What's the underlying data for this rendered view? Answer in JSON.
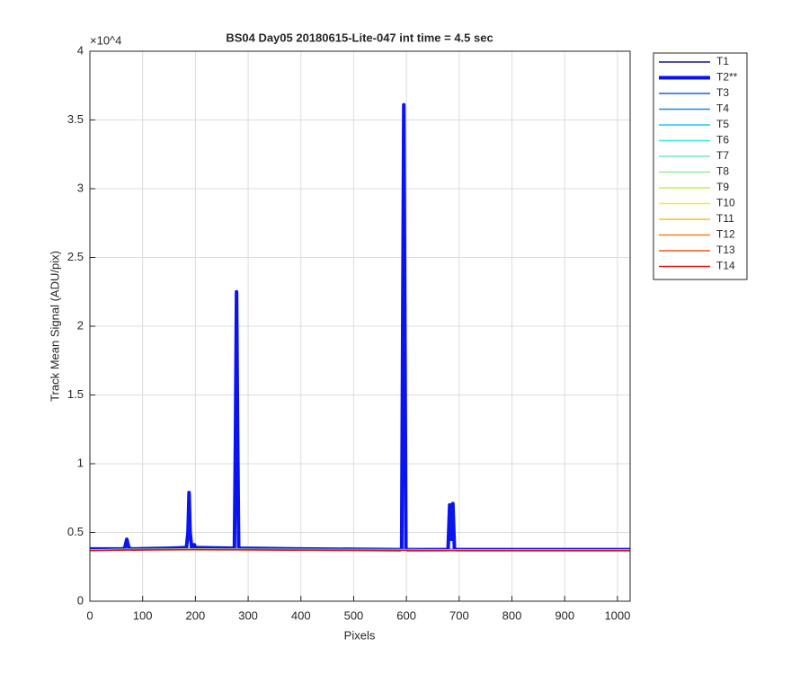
{
  "chart_data": {
    "type": "line",
    "title": "BS04 Day05 20180615-Lite-047 int time = 4.5 sec",
    "xlabel": "Pixels",
    "ylabel": "Track Mean Signal (ADU/pix)",
    "y_multiplier": "×10^4",
    "xlim": [
      0,
      1024
    ],
    "ylim": [
      0,
      40000
    ],
    "xticks": [
      0,
      100,
      200,
      300,
      400,
      500,
      600,
      700,
      800,
      900,
      1000
    ],
    "yticks": [
      0,
      {
        "value": 5000,
        "label": "0.5"
      },
      {
        "value": 10000,
        "label": "1"
      },
      {
        "value": 15000,
        "label": "1.5"
      },
      {
        "value": 20000,
        "label": "2"
      },
      {
        "value": 25000,
        "label": "2.5"
      },
      {
        "value": 30000,
        "label": "3"
      },
      {
        "value": 35000,
        "label": "3.5"
      },
      {
        "value": 40000,
        "label": "4"
      }
    ],
    "grid": true,
    "legend": "outside-right",
    "series": [
      {
        "name": "T1",
        "color": "#14148c",
        "linewidth": 1.5,
        "x": [
          0,
          70,
          190,
          280,
          400,
          595,
          700,
          1024
        ],
        "values": [
          3760,
          3800,
          3820,
          3810,
          3790,
          3780,
          3760,
          3760
        ]
      },
      {
        "name": "T2**",
        "color": "#0a14f0",
        "linewidth": 4,
        "x": [
          0,
          60,
          66,
          70,
          74,
          80,
          150,
          183,
          186,
          188,
          190,
          193,
          196,
          198,
          200,
          270,
          274,
          276,
          278,
          280,
          282,
          286,
          400,
          588,
          591,
          593,
          595,
          597,
          599,
          602,
          675,
          679,
          682,
          685,
          688,
          691,
          695,
          800,
          1024
        ],
        "values": [
          3800,
          3800,
          3850,
          4500,
          3850,
          3800,
          3850,
          3900,
          5000,
          7900,
          5000,
          3900,
          3950,
          4100,
          3900,
          3850,
          3900,
          12000,
          22500,
          12000,
          3900,
          3850,
          3800,
          3750,
          3850,
          20000,
          36100,
          20000,
          3850,
          3750,
          3750,
          3800,
          7000,
          4500,
          7100,
          3800,
          3750,
          3750,
          3750
        ]
      },
      {
        "name": "T3",
        "color": "#1a5ee0",
        "linewidth": 1.5,
        "x": [
          0,
          70,
          190,
          280,
          400,
          595,
          700,
          1024
        ],
        "values": [
          3740,
          3780,
          3800,
          3790,
          3770,
          3760,
          3740,
          3740
        ]
      },
      {
        "name": "T4",
        "color": "#1c8ee6",
        "linewidth": 1.5,
        "x": [
          0,
          70,
          190,
          280,
          400,
          595,
          700,
          1024
        ],
        "values": [
          3730,
          3770,
          3790,
          3780,
          3760,
          3750,
          3730,
          3730
        ]
      },
      {
        "name": "T5",
        "color": "#22c0f0",
        "linewidth": 1.5,
        "x": [
          0,
          70,
          190,
          280,
          400,
          595,
          700,
          1024
        ],
        "values": [
          3720,
          3760,
          3780,
          3770,
          3750,
          3740,
          3720,
          3720
        ]
      },
      {
        "name": "T6",
        "color": "#32e6e6",
        "linewidth": 1.5,
        "x": [
          0,
          70,
          190,
          280,
          400,
          595,
          700,
          1024
        ],
        "values": [
          3710,
          3750,
          3770,
          3760,
          3740,
          3730,
          3710,
          3710
        ]
      },
      {
        "name": "T7",
        "color": "#70e6c0",
        "linewidth": 1.5,
        "x": [
          0,
          70,
          190,
          280,
          400,
          595,
          700,
          1024
        ],
        "values": [
          3720,
          3760,
          3780,
          3770,
          3750,
          3740,
          3720,
          3720
        ]
      },
      {
        "name": "T8",
        "color": "#92ee92",
        "linewidth": 1.5,
        "x": [
          0,
          70,
          190,
          280,
          400,
          595,
          700,
          1024
        ],
        "values": [
          3730,
          3770,
          3790,
          3780,
          3760,
          3750,
          3730,
          3730
        ]
      },
      {
        "name": "T9",
        "color": "#c2ee5c",
        "linewidth": 1.5,
        "x": [
          0,
          70,
          190,
          280,
          400,
          595,
          700,
          1024
        ],
        "values": [
          3720,
          3760,
          3780,
          3770,
          3750,
          3740,
          3720,
          3720
        ]
      },
      {
        "name": "T10",
        "color": "#f6ee22",
        "linewidth": 1.5,
        "x": [
          0,
          70,
          190,
          280,
          400,
          595,
          700,
          1024
        ],
        "values": [
          3710,
          3750,
          3770,
          3760,
          3740,
          3730,
          3710,
          3710
        ]
      },
      {
        "name": "T11",
        "color": "#eec028",
        "linewidth": 1.5,
        "x": [
          0,
          70,
          190,
          280,
          400,
          595,
          700,
          1024
        ],
        "values": [
          3700,
          3740,
          3760,
          3750,
          3730,
          3720,
          3700,
          3700
        ]
      },
      {
        "name": "T12",
        "color": "#f08424",
        "linewidth": 1.5,
        "x": [
          0,
          70,
          190,
          280,
          400,
          595,
          700,
          1024
        ],
        "values": [
          3700,
          3740,
          3760,
          3750,
          3730,
          3720,
          3700,
          3700
        ]
      },
      {
        "name": "T13",
        "color": "#f05422",
        "linewidth": 1.5,
        "x": [
          0,
          70,
          190,
          280,
          400,
          595,
          700,
          1024
        ],
        "values": [
          3690,
          3730,
          3750,
          3740,
          3720,
          3710,
          3690,
          3690
        ]
      },
      {
        "name": "T14",
        "color": "#e01414",
        "linewidth": 1.5,
        "x": [
          0,
          70,
          190,
          280,
          400,
          595,
          700,
          1024
        ],
        "values": [
          3680,
          3720,
          3740,
          3730,
          3710,
          3700,
          3680,
          3680
        ]
      }
    ]
  }
}
